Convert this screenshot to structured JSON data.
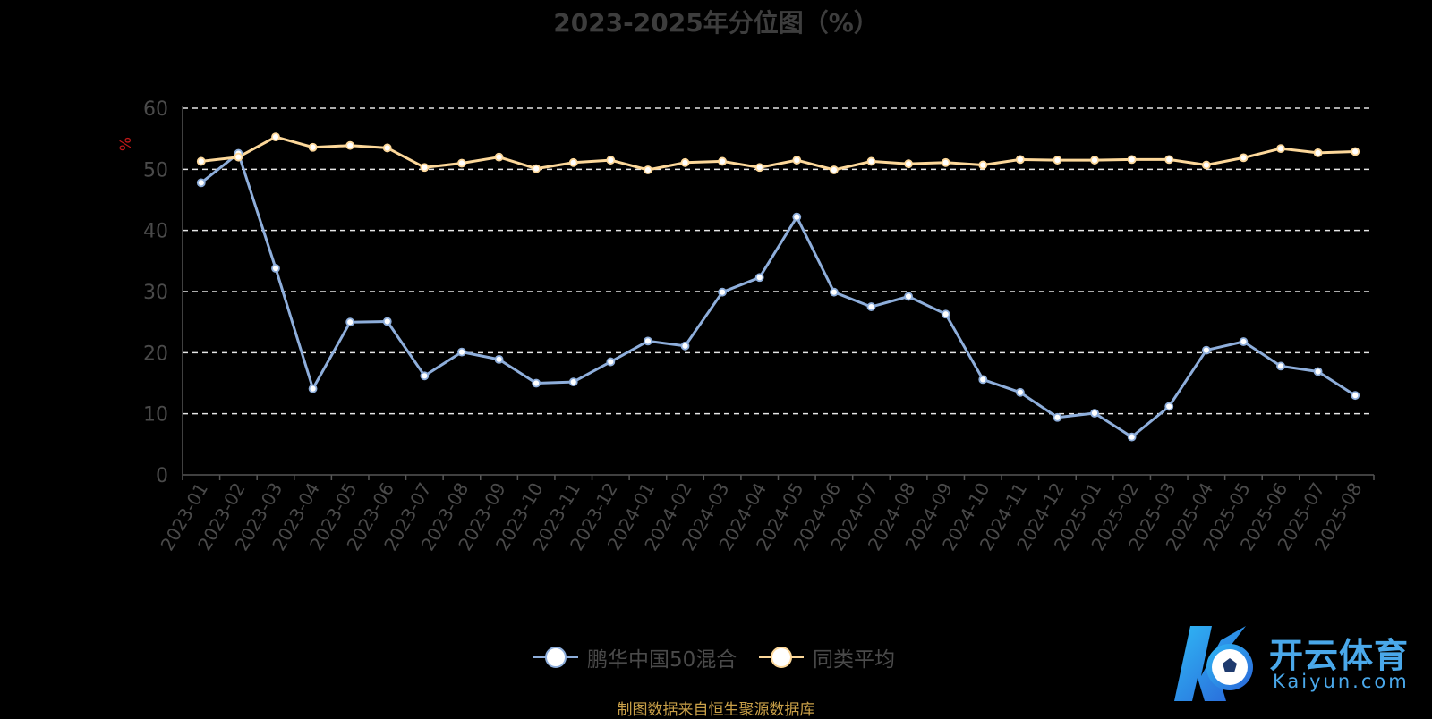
{
  "chart_data": {
    "type": "line",
    "title": "2023-2025年分位图（%）",
    "ylabel": "%",
    "ylim": [
      0,
      60
    ],
    "yticks": [
      0,
      10,
      20,
      30,
      40,
      50,
      60
    ],
    "grid": true,
    "legend_position": "bottom-center",
    "categories": [
      "2023-01",
      "2023-02",
      "2023-03",
      "2023-04",
      "2023-05",
      "2023-06",
      "2023-07",
      "2023-08",
      "2023-09",
      "2023-10",
      "2023-11",
      "2023-12",
      "2024-01",
      "2024-02",
      "2024-03",
      "2024-04",
      "2024-05",
      "2024-06",
      "2024-07",
      "2024-08",
      "2024-09",
      "2024-10",
      "2024-11",
      "2024-12",
      "2025-01",
      "2025-02",
      "2025-03",
      "2025-04",
      "2025-05",
      "2025-06",
      "2025-07",
      "2025-08"
    ],
    "series": [
      {
        "name": "鹏华中国50混合",
        "color": "#8eaedb",
        "values": [
          47.8,
          52.6,
          33.8,
          14.1,
          25.0,
          25.1,
          16.2,
          20.1,
          18.9,
          15.0,
          15.2,
          18.5,
          21.9,
          21.1,
          29.9,
          32.3,
          42.2,
          29.9,
          27.5,
          29.2,
          26.3,
          15.6,
          13.5,
          9.4,
          10.1,
          6.2,
          11.2,
          20.4,
          21.8,
          17.8,
          16.9,
          13.0
        ]
      },
      {
        "name": "同类平均",
        "color": "#fdd89a",
        "values": [
          51.3,
          52.0,
          55.3,
          53.6,
          53.9,
          53.5,
          50.3,
          51.0,
          52.0,
          50.1,
          51.1,
          51.5,
          49.9,
          51.1,
          51.3,
          50.3,
          51.5,
          49.9,
          51.3,
          50.9,
          51.1,
          50.7,
          51.6,
          51.5,
          51.5,
          51.6,
          51.6,
          50.7,
          51.9,
          53.4,
          52.7,
          52.9
        ]
      }
    ]
  },
  "footer": {
    "source_note": "制图数据来自恒生聚源数据库"
  },
  "watermark": {
    "brand_cn": "开云体育",
    "brand_en": "Kaiyun.com",
    "logo_icon": "k-football-logo-icon"
  }
}
